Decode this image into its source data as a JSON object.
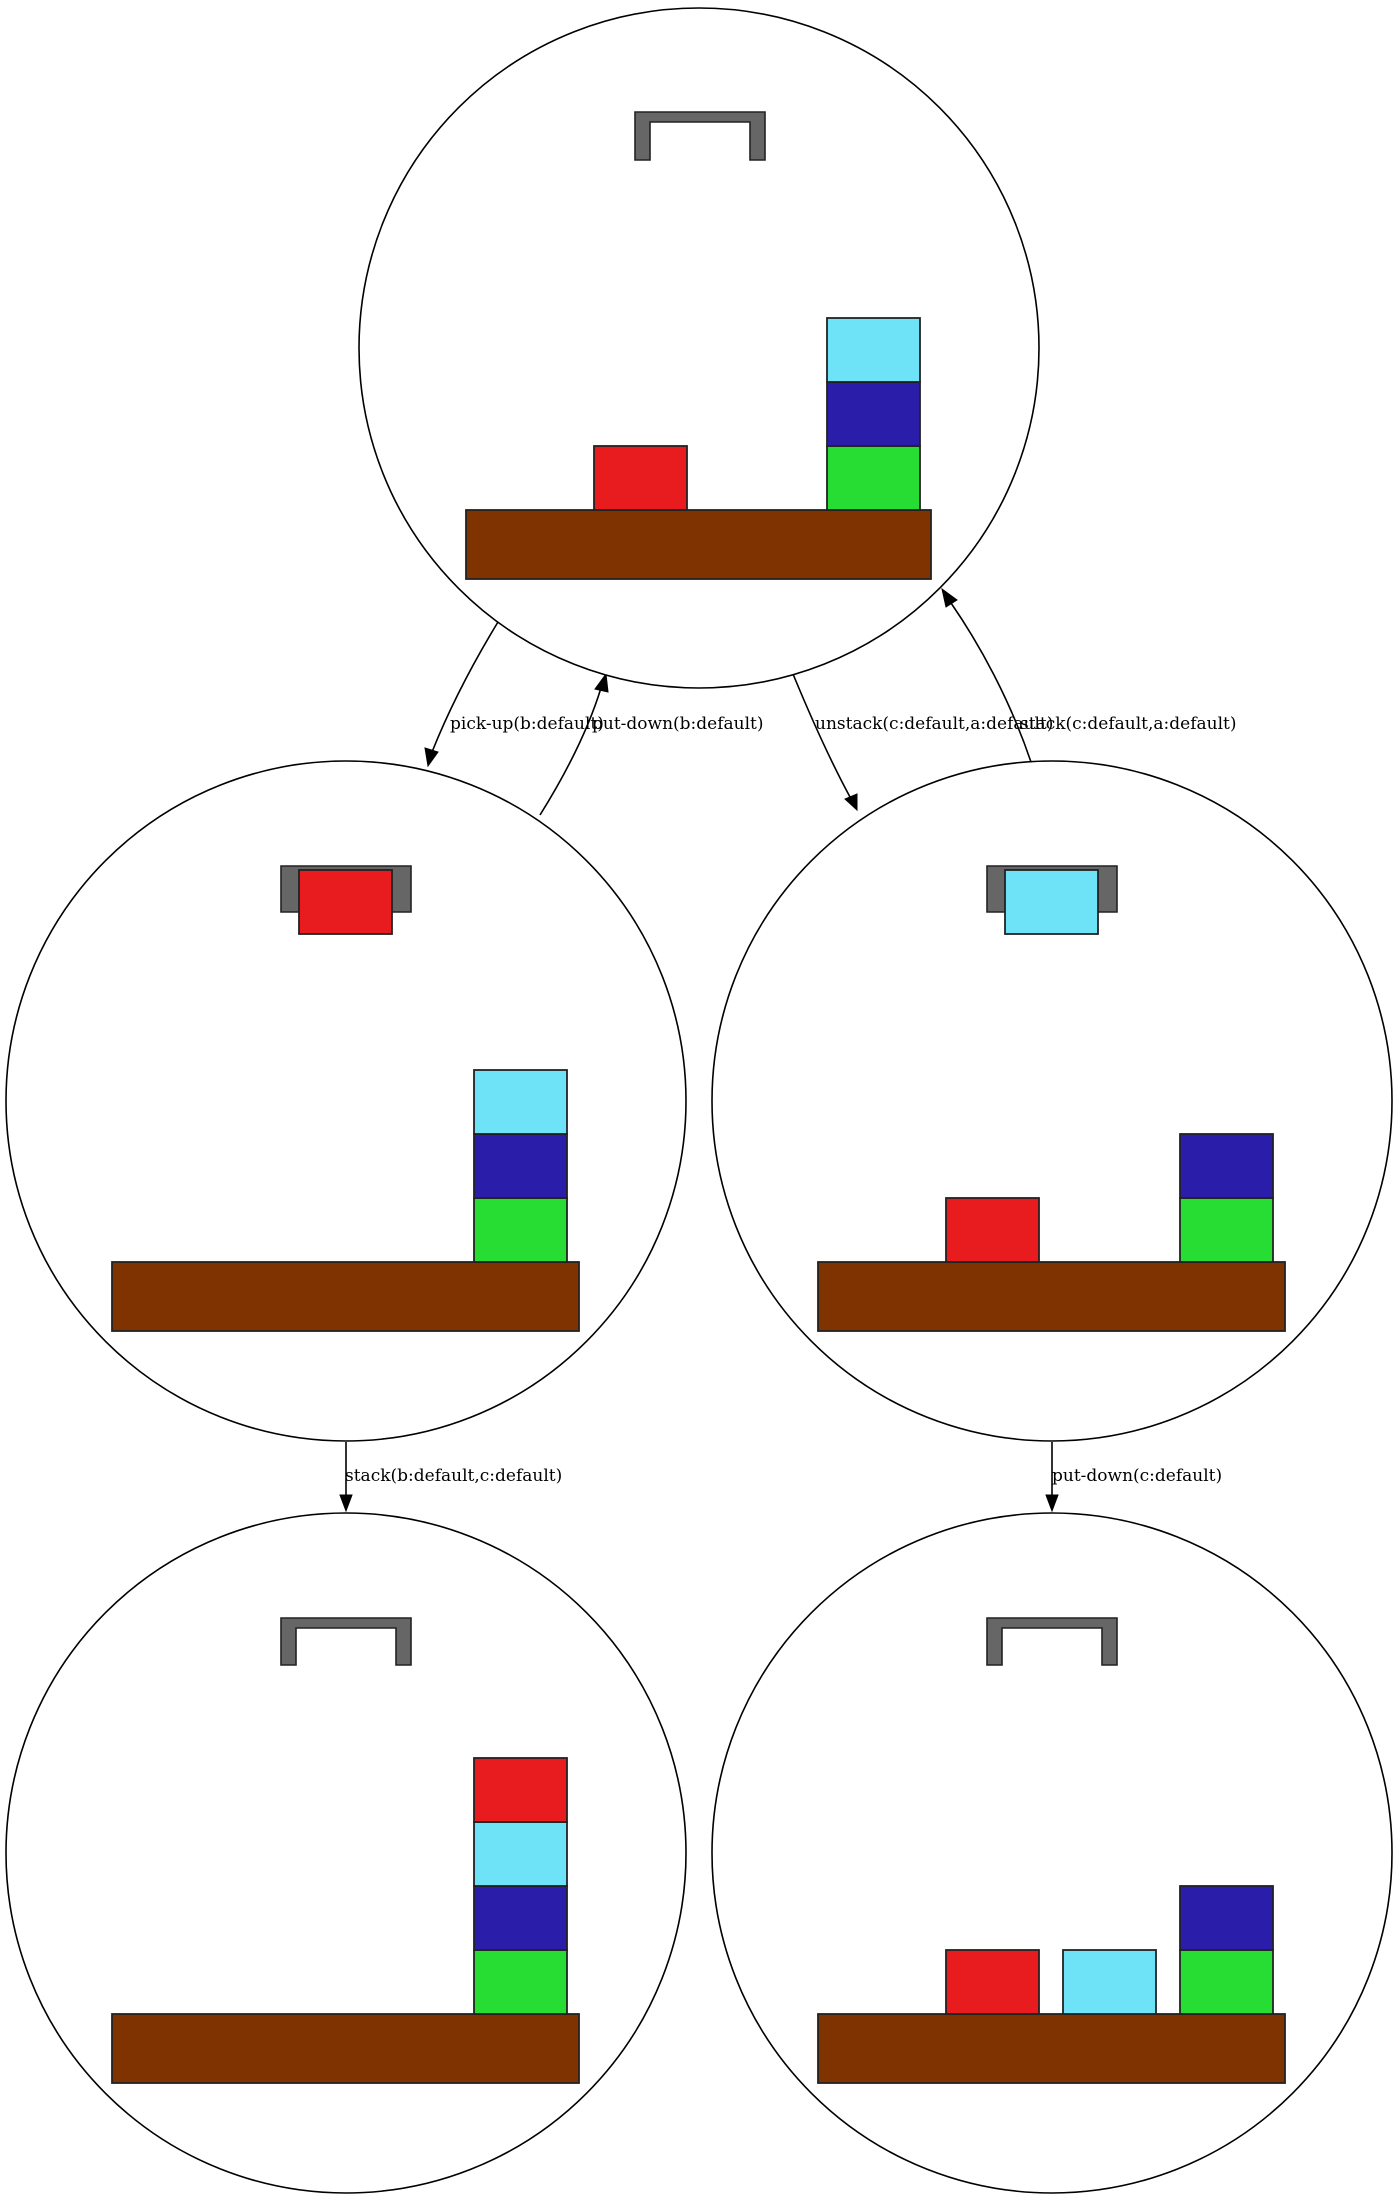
{
  "colors": {
    "a": "#27dd33",
    "b": "#e81b1e",
    "c": "#6ee2f6",
    "d": "#2a1daa",
    "table": "#7f3300",
    "gripper": "#666666"
  },
  "edges": [
    {
      "label": "pick-up(b:default)"
    },
    {
      "label": "put-down(b:default)"
    },
    {
      "label": "unstack(c:default,a:default)"
    },
    {
      "label": "stack(c:default,a:default)"
    },
    {
      "label": "stack(b:default,c:default)"
    },
    {
      "label": "put-down(c:default)"
    }
  ]
}
